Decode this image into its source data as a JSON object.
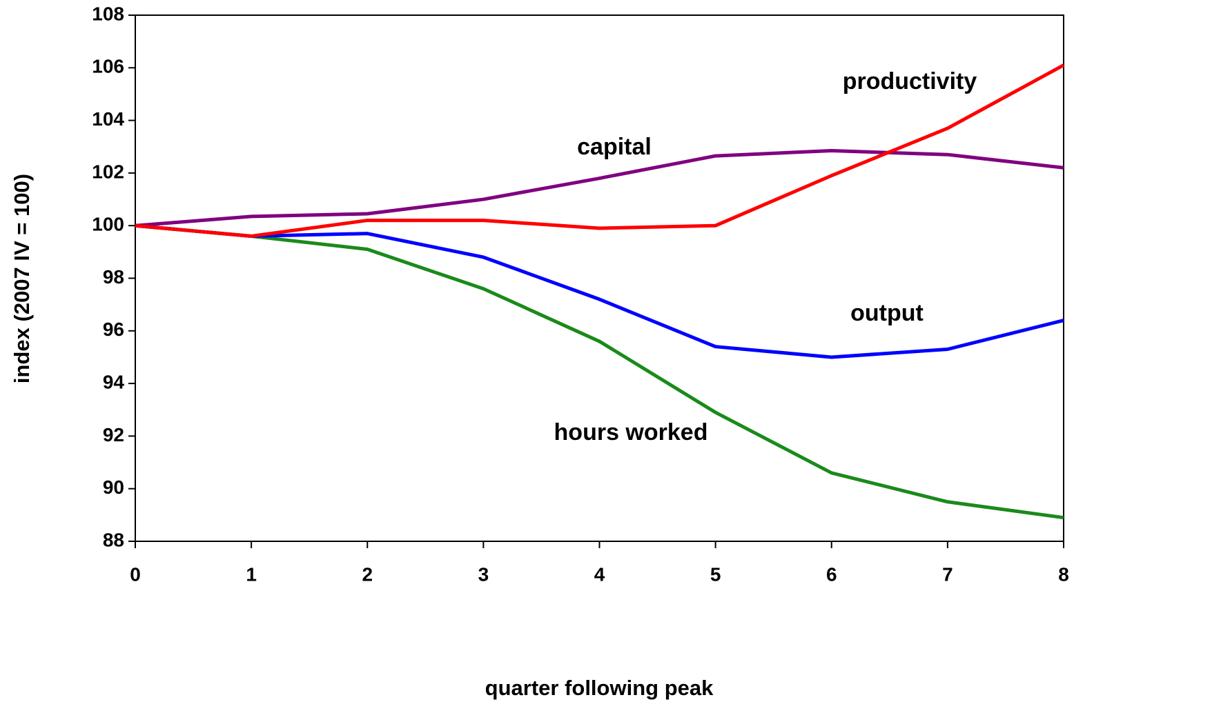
{
  "chart_data": {
    "type": "line",
    "xlabel": "quarter following peak",
    "ylabel": "index (2007 IV = 100)",
    "x": [
      0,
      1,
      2,
      3,
      4,
      5,
      6,
      7,
      8
    ],
    "xlim": [
      0,
      8
    ],
    "xticks": [
      0,
      1,
      2,
      3,
      4,
      5,
      6,
      7,
      8
    ],
    "ylim": [
      88,
      108
    ],
    "yticks": [
      88,
      90,
      92,
      94,
      96,
      98,
      100,
      102,
      104,
      106,
      108
    ],
    "grid": false,
    "series": [
      {
        "name": "hours worked",
        "color": "#1a8a1a",
        "values": [
          100,
          99.6,
          99.1,
          97.6,
          95.6,
          92.9,
          90.6,
          89.5,
          88.9
        ]
      },
      {
        "name": "output",
        "color": "#0000ff",
        "values": [
          100,
          99.6,
          99.7,
          98.8,
          97.2,
          95.4,
          95.0,
          95.3,
          96.4
        ]
      },
      {
        "name": "capital",
        "color": "#800080",
        "values": [
          100,
          100.35,
          100.45,
          101.0,
          101.8,
          102.65,
          102.85,
          102.7,
          102.2
        ]
      },
      {
        "name": "productivity",
        "color": "#ff0000",
        "values": [
          100,
          99.6,
          100.2,
          100.2,
          99.9,
          100.0,
          101.9,
          103.7,
          106.1
        ]
      }
    ]
  }
}
